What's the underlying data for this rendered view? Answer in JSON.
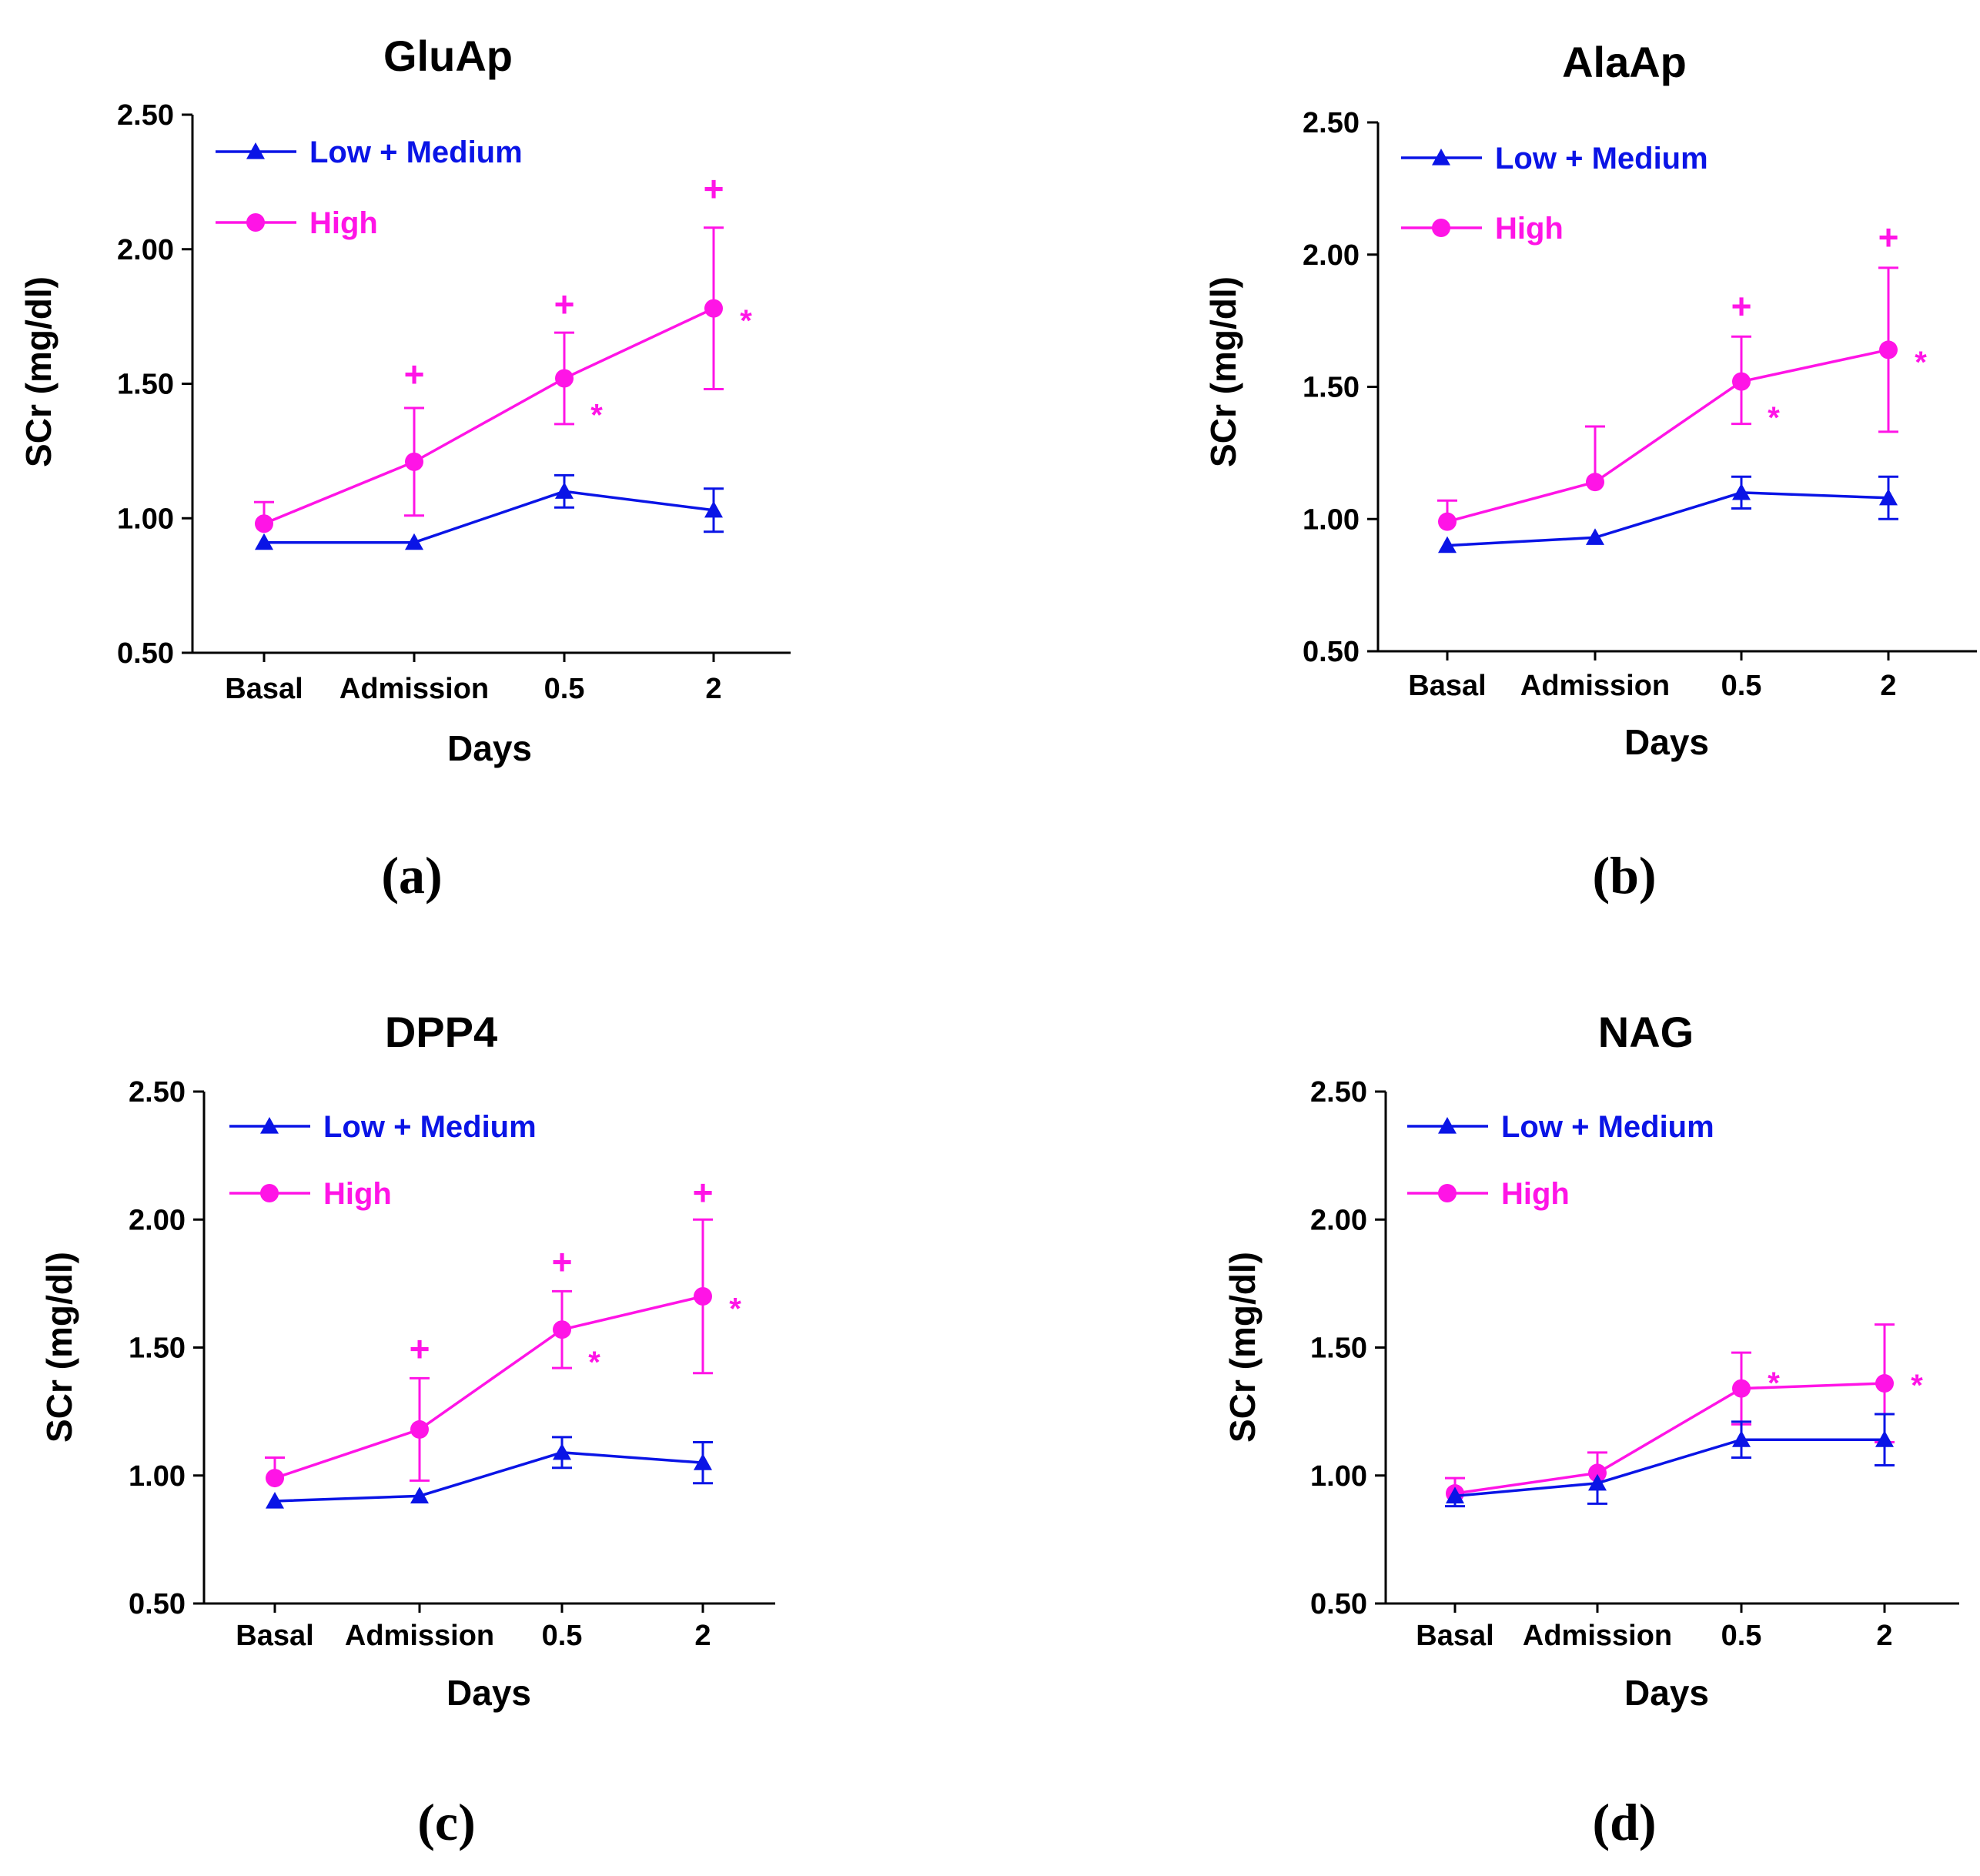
{
  "colors": {
    "low_medium": "#0a14e6",
    "high": "#ff14e6",
    "axis": "#000000"
  },
  "chart_data": [
    {
      "type": "line",
      "panel_label": "(a)",
      "title": "GluAp",
      "xlabel": "Days",
      "ylabel": "SCr (mg/dl)",
      "categories": [
        "Basal",
        "Admission",
        "0.5",
        "2"
      ],
      "ylim": [
        0.5,
        2.5
      ],
      "yticks": [
        "0.50",
        "1.00",
        "1.50",
        "2.00",
        "2.50"
      ],
      "legend_position": "top-left",
      "series": [
        {
          "name": "Low + Medium",
          "marker": "triangle",
          "values": [
            0.91,
            0.91,
            1.1,
            1.03
          ],
          "err_up": [
            0.0,
            0.0,
            0.06,
            0.08
          ],
          "err_down": [
            0.0,
            0.0,
            0.06,
            0.08
          ]
        },
        {
          "name": "High",
          "marker": "circle",
          "values": [
            0.98,
            1.21,
            1.52,
            1.78
          ],
          "err_up": [
            0.08,
            0.2,
            0.17,
            0.3
          ],
          "err_down": [
            0.0,
            0.2,
            0.17,
            0.3
          ]
        }
      ],
      "annotations": [
        {
          "text": "+",
          "category_index": 1,
          "y": 1.53
        },
        {
          "text": "+",
          "category_index": 2,
          "y": 1.79
        },
        {
          "text": "+",
          "category_index": 3,
          "y": 2.22
        },
        {
          "text": "*",
          "category_index": 2,
          "y": 1.42,
          "side": "right"
        },
        {
          "text": "*",
          "category_index": 3,
          "y": 1.77,
          "side": "right"
        }
      ]
    },
    {
      "type": "line",
      "panel_label": "(b)",
      "title": "AlaAp",
      "xlabel": "Days",
      "ylabel": "SCr (mg/dl)",
      "categories": [
        "Basal",
        "Admission",
        "0.5",
        "2"
      ],
      "ylim": [
        0.5,
        2.5
      ],
      "yticks": [
        "0.50",
        "1.00",
        "1.50",
        "2.00",
        "2.50"
      ],
      "legend_position": "top-left",
      "series": [
        {
          "name": "Low + Medium",
          "marker": "triangle",
          "values": [
            0.9,
            0.93,
            1.1,
            1.08
          ],
          "err_up": [
            0.0,
            0.0,
            0.06,
            0.08
          ],
          "err_down": [
            0.0,
            0.0,
            0.06,
            0.08
          ]
        },
        {
          "name": "High",
          "marker": "circle",
          "values": [
            0.99,
            1.14,
            1.52,
            1.64
          ],
          "err_up": [
            0.08,
            0.21,
            0.17,
            0.31
          ],
          "err_down": [
            0.0,
            0.0,
            0.16,
            0.31
          ]
        }
      ],
      "annotations": [
        {
          "text": "+",
          "category_index": 2,
          "y": 1.8
        },
        {
          "text": "+",
          "category_index": 3,
          "y": 2.06
        },
        {
          "text": "*",
          "category_index": 2,
          "y": 1.42,
          "side": "right"
        },
        {
          "text": "*",
          "category_index": 3,
          "y": 1.63,
          "side": "right"
        }
      ]
    },
    {
      "type": "line",
      "panel_label": "(c)",
      "title": "DPP4",
      "xlabel": "Days",
      "ylabel": "SCr (mg/dl)",
      "categories": [
        "Basal",
        "Admission",
        "0.5",
        "2"
      ],
      "ylim": [
        0.5,
        2.5
      ],
      "yticks": [
        "0.50",
        "1.00",
        "1.50",
        "2.00",
        "2.50"
      ],
      "legend_position": "top-left",
      "series": [
        {
          "name": "Low + Medium",
          "marker": "triangle",
          "values": [
            0.9,
            0.92,
            1.09,
            1.05
          ],
          "err_up": [
            0.0,
            0.0,
            0.06,
            0.08
          ],
          "err_down": [
            0.0,
            0.0,
            0.06,
            0.08
          ]
        },
        {
          "name": "High",
          "marker": "circle",
          "values": [
            0.99,
            1.18,
            1.57,
            1.7
          ],
          "err_up": [
            0.08,
            0.2,
            0.15,
            0.3
          ],
          "err_down": [
            0.0,
            0.2,
            0.15,
            0.3
          ]
        }
      ],
      "annotations": [
        {
          "text": "+",
          "category_index": 1,
          "y": 1.49
        },
        {
          "text": "+",
          "category_index": 2,
          "y": 1.83
        },
        {
          "text": "+",
          "category_index": 3,
          "y": 2.1
        },
        {
          "text": "*",
          "category_index": 2,
          "y": 1.48,
          "side": "right"
        },
        {
          "text": "*",
          "category_index": 3,
          "y": 1.69,
          "side": "right"
        }
      ]
    },
    {
      "type": "line",
      "panel_label": "(d)",
      "title": "NAG",
      "xlabel": "Days",
      "ylabel": "SCr (mg/dl)",
      "categories": [
        "Basal",
        "Admission",
        "0.5",
        "2"
      ],
      "ylim": [
        0.5,
        2.5
      ],
      "yticks": [
        "0.50",
        "1.00",
        "1.50",
        "2.00",
        "2.50"
      ],
      "legend_position": "top-left",
      "series": [
        {
          "name": "Low + Medium",
          "marker": "triangle",
          "values": [
            0.92,
            0.97,
            1.14,
            1.14
          ],
          "err_up": [
            0.0,
            0.0,
            0.07,
            0.1
          ],
          "err_down": [
            0.04,
            0.08,
            0.07,
            0.1
          ]
        },
        {
          "name": "High",
          "marker": "circle",
          "values": [
            0.93,
            1.01,
            1.34,
            1.36
          ],
          "err_up": [
            0.06,
            0.08,
            0.14,
            0.23
          ],
          "err_down": [
            0.0,
            0.0,
            0.14,
            0.23
          ]
        }
      ],
      "annotations": [
        {
          "text": "*",
          "category_index": 2,
          "y": 1.4,
          "side": "right"
        },
        {
          "text": "*",
          "category_index": 3,
          "y": 1.39,
          "side": "right"
        }
      ]
    }
  ]
}
